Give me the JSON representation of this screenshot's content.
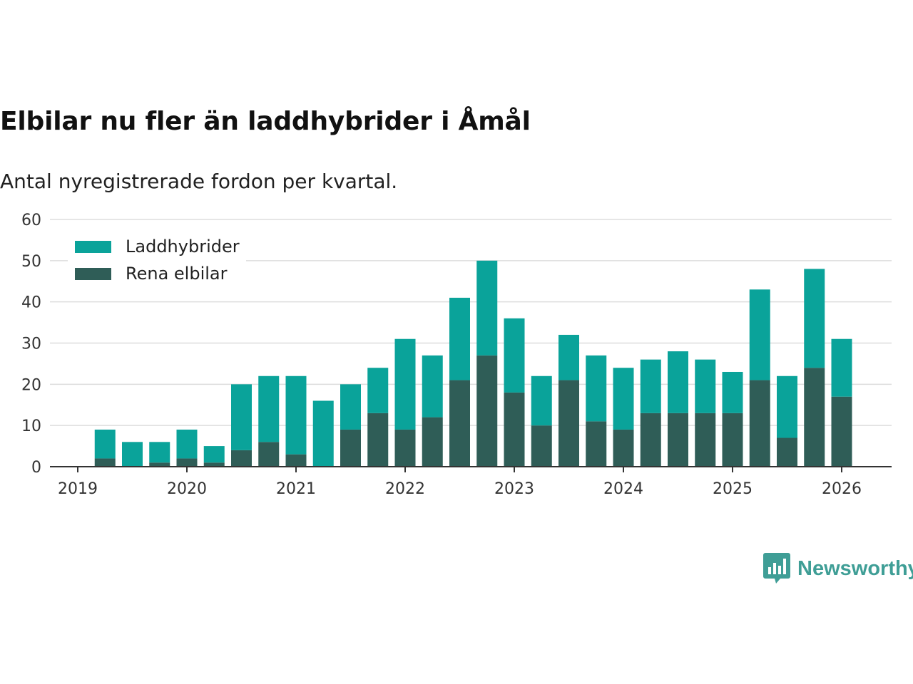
{
  "colors": {
    "phev": "#0aa39a",
    "bev": "#2f5d57",
    "grid": "#dddddd",
    "axis": "#333333",
    "brand": "#3f9e96"
  },
  "header": {
    "title": "Elbilar nu fler än laddhybrider i Åmål",
    "subtitle": "Antal nyregistrerade fordon per kvartal."
  },
  "brand": {
    "name": "Newsworthy",
    "icon": "bar-chart-speech-bubble-icon"
  },
  "chart_data": {
    "type": "bar",
    "stacked": true,
    "title": "Elbilar nu fler än laddhybrider i Åmål",
    "subtitle": "Antal nyregistrerade fordon per kvartal.",
    "xlabel": "",
    "ylabel": "",
    "ylim": [
      0,
      60
    ],
    "yticks": [
      0,
      10,
      20,
      30,
      40,
      50,
      60
    ],
    "x_tick_labels": [
      "2019",
      "2020",
      "2021",
      "2022",
      "2023",
      "2024",
      "2025",
      "2026"
    ],
    "grid": true,
    "legend_position": "top-left",
    "categories": [
      "2019 Q2",
      "2019 Q3",
      "2019 Q4",
      "2020 Q1",
      "2020 Q2",
      "2020 Q3",
      "2020 Q4",
      "2021 Q1",
      "2021 Q2",
      "2021 Q3",
      "2021 Q4",
      "2022 Q1",
      "2022 Q2",
      "2022 Q3",
      "2022 Q4",
      "2023 Q1",
      "2023 Q2",
      "2023 Q3",
      "2023 Q4",
      "2024 Q1",
      "2024 Q2",
      "2024 Q3",
      "2024 Q4",
      "2025 Q1",
      "2025 Q2",
      "2025 Q3",
      "2025 Q4",
      "2026 Q1"
    ],
    "series": [
      {
        "name": "Laddhybrider",
        "color": "#0aa39a",
        "values": [
          7,
          6,
          5,
          7,
          4,
          16,
          16,
          19,
          16,
          11,
          11,
          22,
          15,
          20,
          23,
          18,
          12,
          11,
          16,
          15,
          13,
          15,
          13,
          10,
          22,
          15,
          24,
          14
        ]
      },
      {
        "name": "Rena elbilar",
        "color": "#2f5d57",
        "values": [
          2,
          0,
          1,
          2,
          1,
          4,
          6,
          3,
          0,
          9,
          13,
          9,
          12,
          21,
          27,
          18,
          10,
          21,
          11,
          9,
          13,
          13,
          13,
          13,
          21,
          7,
          24,
          17
        ]
      }
    ]
  }
}
